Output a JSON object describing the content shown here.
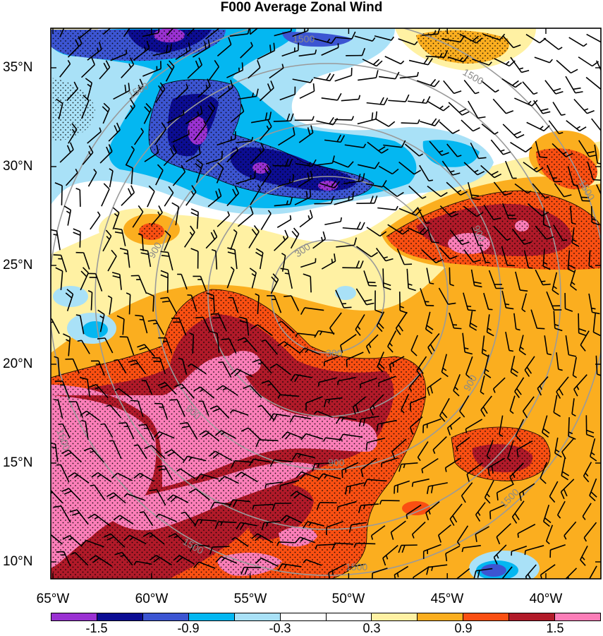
{
  "title": "F000 Average Zonal Wind",
  "map": {
    "lon_range": [
      -65,
      -37
    ],
    "lat_range": [
      9,
      37
    ],
    "lon_ticks": [
      "65°W",
      "60°W",
      "55°W",
      "50°W",
      "45°W",
      "40°W"
    ],
    "lat_ticks": [
      "35°N",
      "30°N",
      "25°N",
      "20°N",
      "15°N",
      "10°N"
    ],
    "range_rings": {
      "color": "#9a9a9a",
      "labels": [
        "300",
        "300",
        "900",
        "900",
        "900",
        "900",
        "900",
        "1500",
        "1500",
        "1500",
        "1500",
        "1500",
        "1500"
      ]
    },
    "stippling": "dotted significance hatching over strong anomalies",
    "wind_barbs": true
  },
  "colorbar": {
    "colors": [
      "#9a31d2",
      "#0c0d93",
      "#3c55d2",
      "#04b7f1",
      "#a9e1f7",
      "#ffffff",
      "#ffffff",
      "#fff1a3",
      "#fbae1f",
      "#fa4f12",
      "#b11a29",
      "#fc7eb8"
    ],
    "labels": [
      "-1.5",
      "-0.9",
      "-0.3",
      "0.3",
      "0.9",
      "1.5"
    ],
    "label_positions_after_segment": [
      2,
      4,
      6,
      8,
      10,
      12
    ]
  }
}
